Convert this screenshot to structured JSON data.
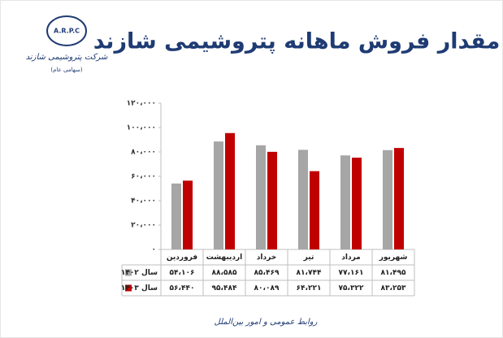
{
  "chart_data": {
    "type": "bar",
    "title": "مقدار فروش ماهانه پتروشیمی شازند",
    "categories": [
      "فروردین",
      "اردیبهشت",
      "خرداد",
      "تیر",
      "مرداد",
      "شهریور"
    ],
    "series": [
      {
        "name": "سال ۱۴۰۲",
        "color": "#a6a6a6",
        "values": [
          54106,
          88585,
          85469,
          81744,
          77161,
          81495
        ],
        "value_labels": [
          "۵۴،۱۰۶",
          "۸۸،۵۸۵",
          "۸۵،۴۶۹",
          "۸۱،۷۴۴",
          "۷۷،۱۶۱",
          "۸۱،۴۹۵"
        ]
      },
      {
        "name": "سال ۱۴۰۳",
        "color": "#c00000",
        "values": [
          56440,
          95484,
          80089,
          64221,
          75322,
          83253
        ],
        "value_labels": [
          "۵۶،۴۴۰",
          "۹۵،۴۸۴",
          "۸۰،۰۸۹",
          "۶۴،۲۲۱",
          "۷۵،۳۲۲",
          "۸۳،۲۵۳"
        ]
      }
    ],
    "ylim": [
      0,
      120000
    ],
    "yticks": [
      {
        "value": 0,
        "label": "۰"
      },
      {
        "value": 20000,
        "label": "۲۰،۰۰۰"
      },
      {
        "value": 40000,
        "label": "۴۰،۰۰۰"
      },
      {
        "value": 60000,
        "label": "۶۰،۰۰۰"
      },
      {
        "value": 80000,
        "label": "۸۰،۰۰۰"
      },
      {
        "value": 100000,
        "label": "۱۰۰،۰۰۰"
      },
      {
        "value": 120000,
        "label": "۱۲۰،۰۰۰"
      }
    ],
    "grid": false
  },
  "logo": {
    "mark": "A.R.P.C",
    "name": "شرکت پتروشیمی شازند",
    "note": "(سهامی عام)"
  },
  "footer": "روابط عمومی و امور بین‌الملل"
}
